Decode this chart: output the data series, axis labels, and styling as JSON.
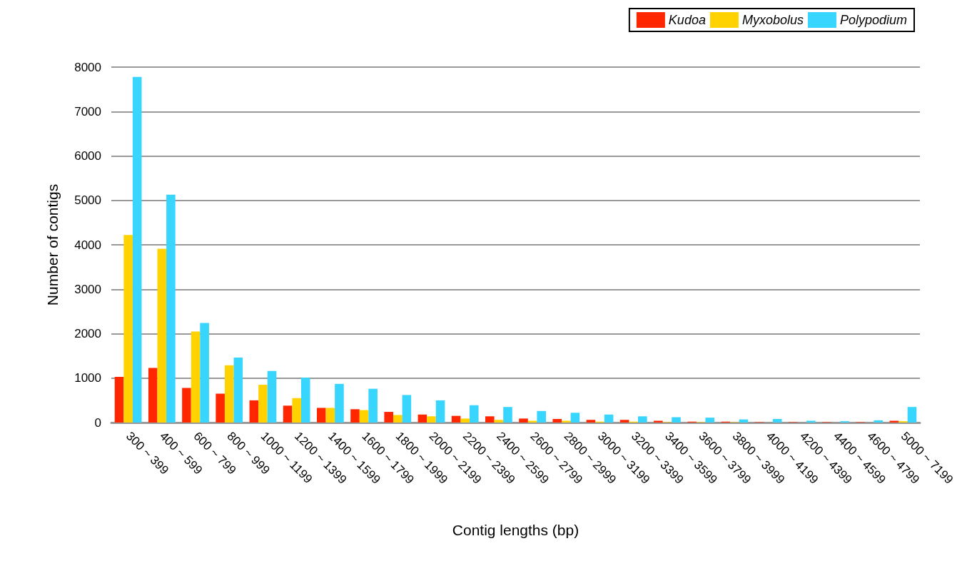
{
  "chart_data": {
    "type": "bar",
    "xlabel": "Contig lengths (bp)",
    "ylabel": "Number of contigs",
    "categories": [
      "300 ~ 399",
      "400 ~ 599",
      "600 ~ 799",
      "800 ~ 999",
      "1000 ~ 1199",
      "1200 ~ 1399",
      "1400 ~ 1599",
      "1600 ~ 1799",
      "1800 ~ 1999",
      "2000 ~ 2199",
      "2200 ~ 2399",
      "2400 ~ 2599",
      "2600 ~ 2799",
      "2800 ~ 2999",
      "3000 ~ 3199",
      "3200 ~ 3399",
      "3400 ~ 3599",
      "3600 ~ 3799",
      "3800 ~ 3999",
      "4000 ~ 4199",
      "4200 ~ 4399",
      "4400 ~ 4599",
      "4600 ~ 4799",
      "5000 ~ 7199"
    ],
    "series": [
      {
        "name": "Kudoa",
        "color": "#ff2600",
        "values": [
          1030,
          1230,
          780,
          650,
          500,
          380,
          330,
          300,
          240,
          180,
          150,
          140,
          90,
          80,
          60,
          60,
          40,
          20,
          20,
          10,
          10,
          10,
          10,
          40
        ]
      },
      {
        "name": "Myxobolus",
        "color": "#ffd200",
        "values": [
          4220,
          3910,
          2050,
          1290,
          850,
          550,
          330,
          280,
          170,
          140,
          90,
          60,
          40,
          40,
          20,
          20,
          10,
          10,
          10,
          0,
          0,
          0,
          0,
          30
        ]
      },
      {
        "name": "Polypodium",
        "color": "#38d5ff",
        "values": [
          7780,
          5130,
          2240,
          1460,
          1160,
          1010,
          870,
          760,
          620,
          500,
          390,
          350,
          260,
          220,
          180,
          140,
          120,
          110,
          70,
          80,
          40,
          30,
          50,
          350
        ]
      }
    ],
    "ylim": [
      0,
      8000
    ],
    "yticks": [
      0,
      1000,
      2000,
      3000,
      4000,
      5000,
      6000,
      7000,
      8000
    ],
    "grid": "y",
    "legend": "top right"
  }
}
